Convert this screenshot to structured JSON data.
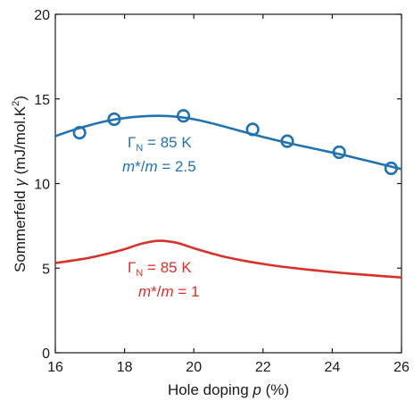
{
  "chart_data": {
    "type": "line",
    "xlabel_prefix": "Hole doping ",
    "xlabel_italic": "p",
    "xlabel_suffix": " (%)",
    "ylabel_prefix": "Sommerfeld ",
    "ylabel_italic": "γ",
    "ylabel_suffix": " (mJ/mol.K",
    "ylabel_superscript": "2",
    "ylabel_close": ")",
    "xlim": [
      16,
      26
    ],
    "ylim": [
      0,
      20
    ],
    "x_ticks": [
      16,
      18,
      20,
      22,
      24,
      26
    ],
    "y_ticks": [
      0,
      5,
      10,
      15,
      20
    ],
    "grid": false,
    "series": [
      {
        "color": "#2272b0",
        "marker": "open-circle",
        "x": [
          16.0,
          16.5,
          17.0,
          17.5,
          18.0,
          18.5,
          19.0,
          19.5,
          20.0,
          20.5,
          21.0,
          21.5,
          22.0,
          22.5,
          23.0,
          23.5,
          24.0,
          24.5,
          25.0,
          25.5,
          26.0
        ],
        "y": [
          12.8,
          13.15,
          13.45,
          13.7,
          13.87,
          13.97,
          14.0,
          13.95,
          13.8,
          13.57,
          13.3,
          13.02,
          12.75,
          12.5,
          12.27,
          12.05,
          11.83,
          11.6,
          11.35,
          11.1,
          10.85
        ],
        "points_x": [
          16.7,
          17.7,
          19.7,
          21.7,
          22.7,
          24.2,
          25.7
        ],
        "points_y": [
          13.0,
          13.8,
          14.0,
          13.2,
          12.5,
          11.85,
          10.9
        ],
        "annotation_gamma": "Γ",
        "annotation_sub": "N",
        "annotation_rest": " = 85 K",
        "annotation_mass_a": "m",
        "annotation_mass_b": "*/",
        "annotation_mass_c": "m",
        "annotation_mass_value": " = 2.5"
      },
      {
        "color": "#d9302a",
        "x": [
          16.0,
          16.5,
          17.0,
          17.5,
          18.0,
          18.5,
          19.0,
          19.5,
          20.0,
          20.5,
          21.0,
          21.5,
          22.0,
          22.5,
          23.0,
          23.5,
          24.0,
          24.5,
          25.0,
          25.5,
          26.0
        ],
        "y": [
          5.3,
          5.45,
          5.62,
          5.85,
          6.12,
          6.45,
          6.62,
          6.5,
          6.18,
          5.88,
          5.62,
          5.42,
          5.25,
          5.1,
          4.98,
          4.87,
          4.77,
          4.68,
          4.6,
          4.52,
          4.45
        ],
        "annotation_gamma": "Γ",
        "annotation_sub": "N",
        "annotation_rest": " = 85 K",
        "annotation_mass_a": "m",
        "annotation_mass_b": "*/",
        "annotation_mass_c": "m",
        "annotation_mass_value": " = 1"
      }
    ]
  }
}
